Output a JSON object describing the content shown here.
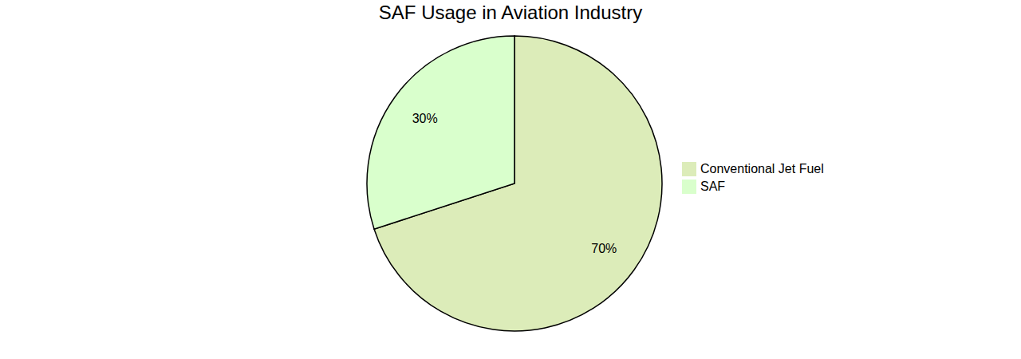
{
  "chart_data": {
    "type": "pie",
    "title": "SAF Usage in Aviation Industry",
    "categories": [
      "Conventional Jet Fuel",
      "SAF"
    ],
    "values": [
      70,
      30
    ],
    "value_labels": [
      "70%",
      "30%"
    ],
    "colors": [
      "#dcecb9",
      "#d9ffcc"
    ],
    "data_labels": true,
    "legend": "right"
  }
}
